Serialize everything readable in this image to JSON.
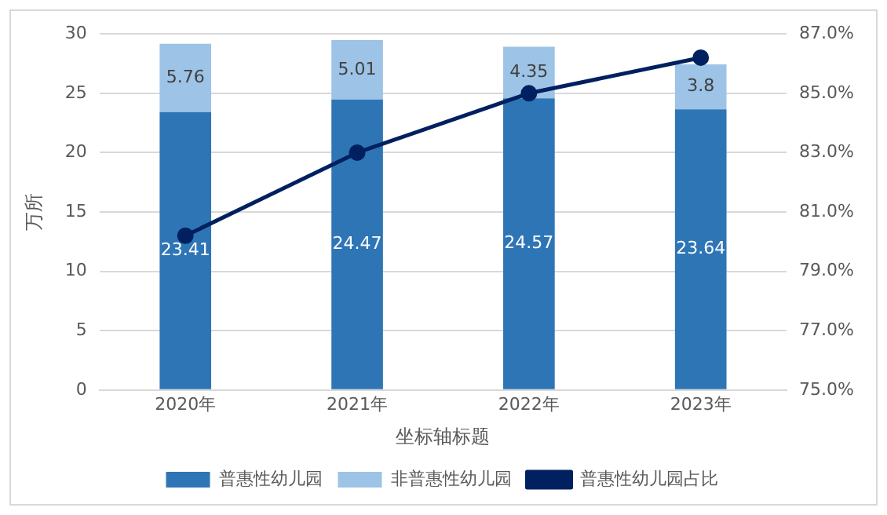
{
  "chart_data": {
    "type": "bar",
    "stacked": true,
    "xlabel": "坐标轴标题",
    "ylabel": "万所",
    "categories": [
      "2020年",
      "2021年",
      "2022年",
      "2023年"
    ],
    "series": [
      {
        "name": "普惠性幼儿园",
        "color": "#2e75b6",
        "values": [
          23.41,
          24.47,
          24.57,
          23.64
        ],
        "value_labels": [
          "23.41",
          "24.47",
          "24.57",
          "23.64"
        ]
      },
      {
        "name": "非普惠性幼儿园",
        "color": "#9dc3e6",
        "values": [
          5.76,
          5.01,
          4.35,
          3.8
        ],
        "value_labels": [
          "5.76",
          "5.01",
          "4.35",
          "3.8"
        ]
      },
      {
        "name": "普惠性幼儿园占比",
        "type": "line",
        "axis": "y2",
        "color": "#002060",
        "marker": "circle",
        "values": [
          80.2,
          83.0,
          85.0,
          86.2
        ]
      }
    ],
    "ylim": [
      0,
      30
    ],
    "yticks": [
      0,
      5,
      10,
      15,
      20,
      25,
      30
    ],
    "y2lim": [
      75,
      87
    ],
    "y2ticks": [
      {
        "value": 75,
        "label": "75.0%"
      },
      {
        "value": 77,
        "label": "77.0%"
      },
      {
        "value": 79,
        "label": "79.0%"
      },
      {
        "value": 81,
        "label": "81.0%"
      },
      {
        "value": 83,
        "label": "83.0%"
      },
      {
        "value": 85,
        "label": "85.0%"
      },
      {
        "value": 87,
        "label": "87.0%"
      }
    ],
    "grid": "y",
    "legend": "bottom"
  }
}
